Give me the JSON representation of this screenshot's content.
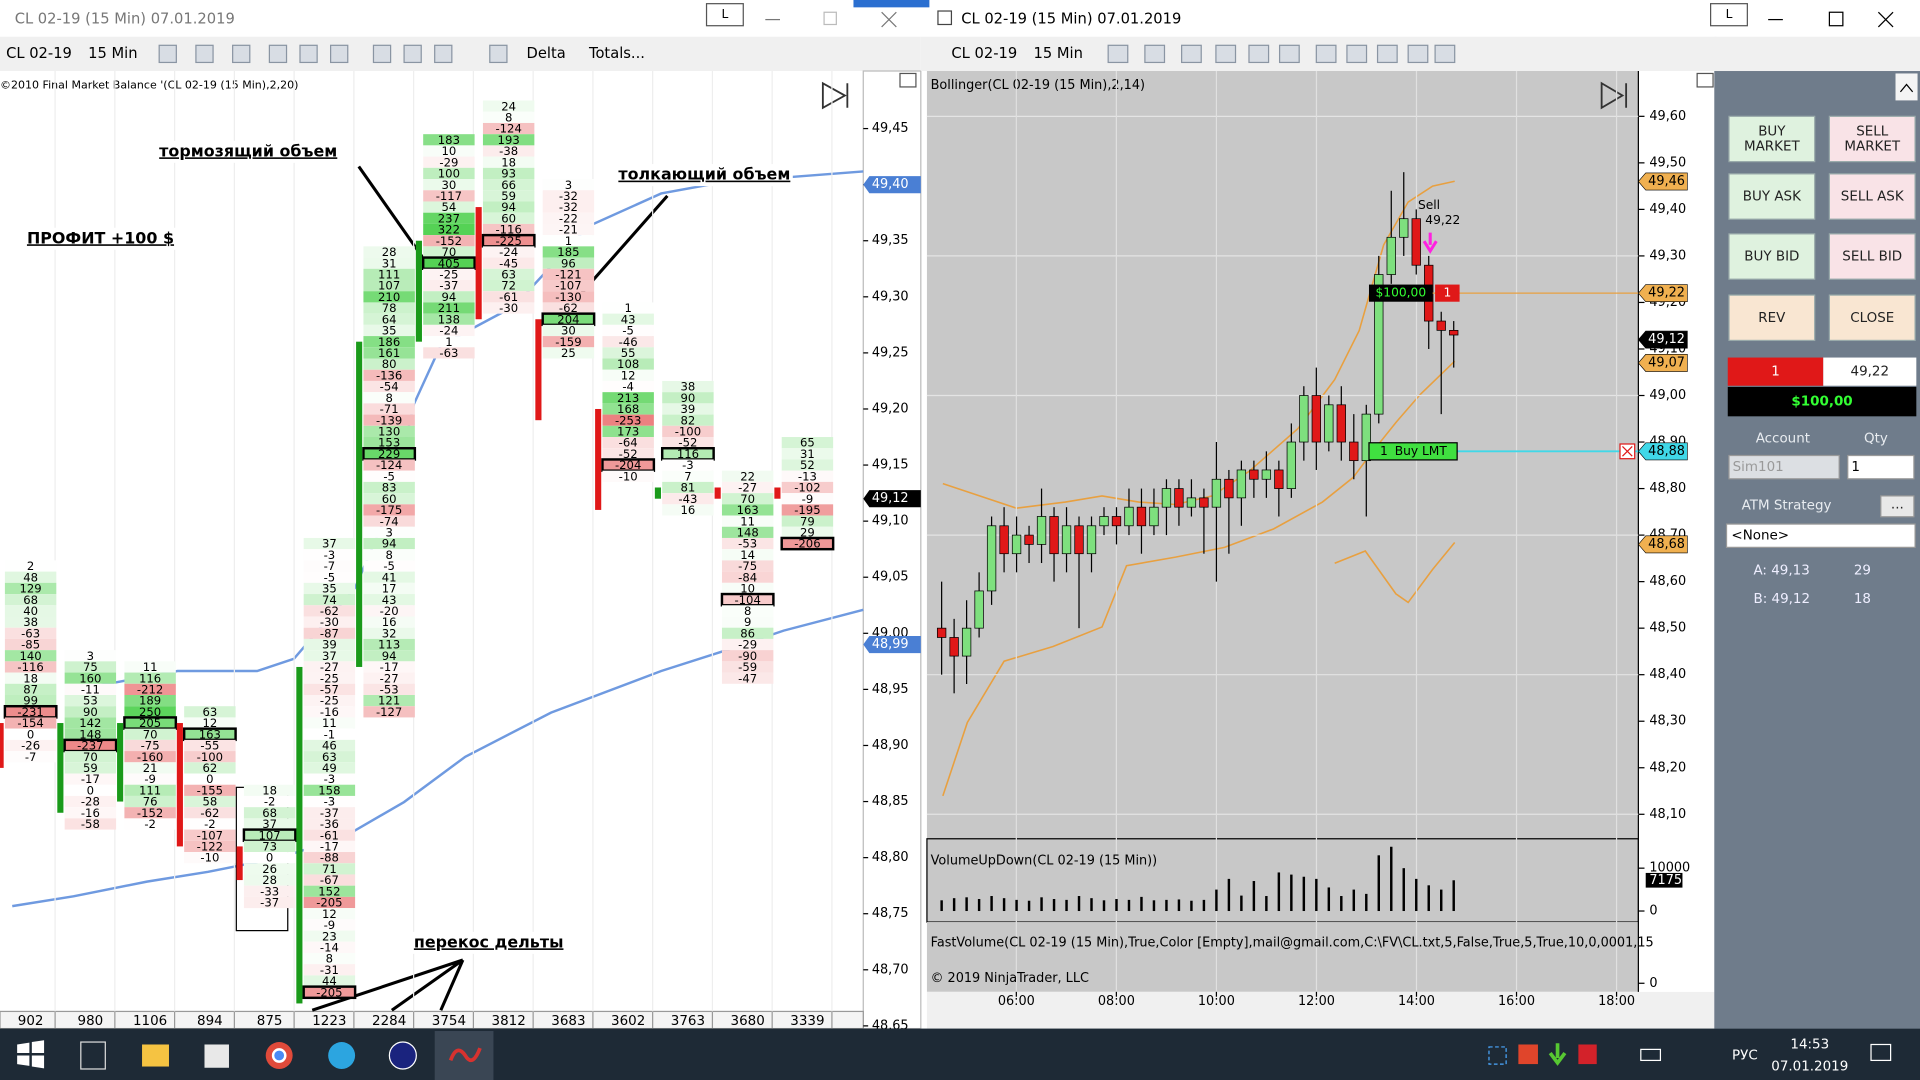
{
  "left_window": {
    "title": "CL 02-19 (15 Min)  07.01.2019",
    "toolbar": [
      "CL 02-19",
      "15 Min",
      "Delta",
      "Totals..."
    ],
    "indicator": "©2010 Final Market Balance  '(CL 02-19 (15 Min),2,20)",
    "price_ticks": [
      {
        "value": 49.45,
        "label": "49,45"
      },
      {
        "value": 49.4,
        "label": "49,40"
      },
      {
        "value": 49.35,
        "label": "49,35"
      },
      {
        "value": 49.3,
        "label": "49,30"
      },
      {
        "value": 49.25,
        "label": "49,25"
      },
      {
        "value": 49.2,
        "label": "49,20"
      },
      {
        "value": 49.15,
        "label": "49,15"
      },
      {
        "value": 49.1,
        "label": "49,10"
      },
      {
        "value": 49.05,
        "label": "49,05"
      },
      {
        "value": 49.0,
        "label": "49,00"
      },
      {
        "value": 48.95,
        "label": "48,95"
      },
      {
        "value": 48.9,
        "label": "48,90"
      },
      {
        "value": 48.85,
        "label": "48,85"
      },
      {
        "value": 48.8,
        "label": "48,80"
      },
      {
        "value": 48.75,
        "label": "48,75"
      },
      {
        "value": 48.7,
        "label": "48,70"
      },
      {
        "value": 48.65,
        "label": "48,65"
      }
    ],
    "price_markers": [
      {
        "value": 49.4,
        "label": "49,40",
        "color": "#4a7fd4"
      },
      {
        "value": 49.12,
        "label": "49,12",
        "color": "#000000"
      },
      {
        "value": 48.99,
        "label": "48,99",
        "color": "#4a7fd4"
      }
    ],
    "annotations": [
      "ПРОФИТ +100 $",
      "тормозящий объем",
      "толкающий объем",
      "перекос дельты"
    ],
    "columns": [
      {
        "total": 902,
        "top": 49.06,
        "body": [
          48.92,
          48.88
        ],
        "poc": 13,
        "cells": [
          2,
          48,
          129,
          68,
          40,
          38,
          -63,
          -85,
          140,
          -116,
          18,
          87,
          99,
          -231,
          -154,
          0,
          -26,
          -7
        ]
      },
      {
        "total": 980,
        "top": 48.98,
        "body": [
          48.84,
          48.92
        ],
        "poc": 8,
        "cells": [
          3,
          75,
          160,
          -11,
          53,
          90,
          142,
          148,
          -237,
          70,
          59,
          -17,
          0,
          -28,
          -16,
          -58
        ]
      },
      {
        "total": 1106,
        "top": 48.97,
        "body": [
          48.85,
          48.92
        ],
        "poc": 5,
        "cells": [
          11,
          116,
          -212,
          189,
          250,
          205,
          70,
          -75,
          -160,
          21,
          -9,
          111,
          76,
          -152,
          -2
        ]
      },
      {
        "total": 894,
        "top": 48.93,
        "body": [
          48.92,
          48.81
        ],
        "poc": 2,
        "cells": [
          63,
          12,
          163,
          -55,
          -100,
          62,
          0,
          -155,
          58,
          -62,
          -2,
          -107,
          -122,
          -10
        ]
      },
      {
        "total": 875,
        "top": 48.86,
        "body": [
          48.81,
          48.78
        ],
        "poc": 4,
        "cells": [
          18,
          -2,
          68,
          37,
          107,
          73,
          0,
          26,
          28,
          -33,
          -37
        ]
      },
      {
        "total": 1223,
        "top": 49.08,
        "body": [
          48.67,
          48.97
        ],
        "poc": 40,
        "cells": [
          37,
          -3,
          -7,
          -5,
          35,
          74,
          -62,
          -30,
          -87,
          39,
          37,
          -27,
          -25,
          -57,
          -25,
          -16,
          11,
          -1,
          46,
          63,
          49,
          -3,
          158,
          -3,
          -37,
          -36,
          -61,
          -17,
          -88,
          71,
          -67,
          152,
          -205,
          12,
          -9,
          23,
          -14,
          8,
          -31,
          44,
          -205
        ]
      },
      {
        "total": 2284,
        "top": 49.34,
        "body": [
          48.97,
          49.26
        ],
        "poc": 18,
        "cells": [
          28,
          31,
          111,
          107,
          210,
          78,
          64,
          35,
          186,
          161,
          80,
          -136,
          -54,
          8,
          -71,
          -139,
          130,
          153,
          229,
          -124,
          -5,
          83,
          60,
          -175,
          -74,
          3,
          94,
          8,
          -5,
          41,
          17,
          43,
          -20,
          16,
          32,
          113,
          94,
          -17,
          -27,
          -53,
          121,
          -127
        ]
      },
      {
        "total": 3754,
        "top": 49.44,
        "body": [
          49.26,
          49.35
        ],
        "poc": 11,
        "cells": [
          183,
          10,
          -29,
          100,
          30,
          -117,
          54,
          237,
          322,
          -152,
          70,
          405,
          -25,
          -37,
          94,
          211,
          138,
          -24,
          1,
          -63
        ]
      },
      {
        "total": 3812,
        "top": 49.47,
        "body": [
          49.38,
          49.28
        ],
        "poc": 12,
        "cells": [
          24,
          8,
          -124,
          193,
          -38,
          18,
          93,
          66,
          59,
          94,
          60,
          -116,
          -225,
          -24,
          -45,
          63,
          72,
          -61,
          -30
        ]
      },
      {
        "total": 3683,
        "top": 49.4,
        "body": [
          49.28,
          49.19
        ],
        "poc": 12,
        "cells": [
          3,
          -32,
          -32,
          -22,
          -21,
          1,
          185,
          96,
          -121,
          -107,
          -130,
          -62,
          204,
          30,
          -159,
          25
        ]
      },
      {
        "total": 3602,
        "top": 49.29,
        "body": [
          49.2,
          49.11
        ],
        "poc": 14,
        "cells": [
          1,
          43,
          -5,
          -46,
          55,
          108,
          12,
          -4,
          213,
          168,
          -253,
          173,
          -64,
          -52,
          -204,
          -10
        ]
      },
      {
        "total": 3763,
        "top": 49.22,
        "body": [
          49.12,
          49.13
        ],
        "poc": 6,
        "cells": [
          38,
          90,
          39,
          82,
          -100,
          -52,
          116,
          -3,
          7,
          81,
          -43,
          16
        ]
      },
      {
        "total": 3680,
        "top": 49.14,
        "body": [
          49.13,
          49.12
        ],
        "poc": 11,
        "cells": [
          22,
          -27,
          70,
          163,
          11,
          148,
          -53,
          14,
          -75,
          -84,
          10,
          -104,
          8,
          9,
          86,
          -29,
          -90,
          -59,
          -47
        ]
      },
      {
        "total": 3339,
        "top": 49.17,
        "body": [
          49.13,
          49.12
        ],
        "poc": 9,
        "cells": [
          65,
          31,
          52,
          -13,
          -102,
          -9,
          -195,
          79,
          29,
          -206
        ]
      }
    ]
  },
  "right_window": {
    "title": "CL 02-19 (15 Min)  07.01.2019",
    "toolbar": [
      "CL 02-19",
      "15 Min"
    ],
    "indicator": "Bollinger(CL 02-19 (15 Min),2,14)",
    "price_ticks": [
      {
        "value": 49.6,
        "label": "49,60"
      },
      {
        "value": 49.5,
        "label": "49,50"
      },
      {
        "value": 49.4,
        "label": "49,40"
      },
      {
        "value": 49.3,
        "label": "49,30"
      },
      {
        "value": 49.2,
        "label": "49,20"
      },
      {
        "value": 49.1,
        "label": "49,10"
      },
      {
        "value": 49.0,
        "label": "49,00"
      },
      {
        "value": 48.9,
        "label": "48,90"
      },
      {
        "value": 48.8,
        "label": "48,80"
      },
      {
        "value": 48.7,
        "label": "48,70"
      },
      {
        "value": 48.6,
        "label": "48,60"
      },
      {
        "value": 48.5,
        "label": "48,50"
      },
      {
        "value": 48.4,
        "label": "48,40"
      },
      {
        "value": 48.3,
        "label": "48,30"
      },
      {
        "value": 48.2,
        "label": "48,20"
      },
      {
        "value": 48.1,
        "label": "48,10"
      }
    ],
    "price_markers": [
      {
        "value": 49.46,
        "label": "49,46",
        "color": "#f0b050"
      },
      {
        "value": 49.22,
        "label": "49,22",
        "color": "#f0b050"
      },
      {
        "value": 49.12,
        "label": "49,12",
        "color": "#000000"
      },
      {
        "value": 49.07,
        "label": "49,07",
        "color": "#f0b050"
      },
      {
        "value": 48.88,
        "label": "48,88",
        "color": "#40d8e8"
      },
      {
        "value": 48.68,
        "label": "48,68",
        "color": "#f0b050"
      }
    ],
    "time_ticks": [
      "06:00",
      "08:00",
      "10:00",
      "12:00",
      "14:00",
      "16:00",
      "18:00"
    ],
    "candles": [
      [
        48.5,
        48.6,
        48.4,
        48.48
      ],
      [
        48.48,
        48.52,
        48.36,
        48.44
      ],
      [
        48.44,
        48.56,
        48.38,
        48.5
      ],
      [
        48.5,
        48.62,
        48.48,
        48.58
      ],
      [
        48.58,
        48.74,
        48.55,
        48.72
      ],
      [
        48.72,
        48.76,
        48.62,
        48.66
      ],
      [
        48.66,
        48.74,
        48.62,
        48.7
      ],
      [
        48.7,
        48.72,
        48.64,
        48.68
      ],
      [
        48.68,
        48.8,
        48.64,
        48.74
      ],
      [
        48.74,
        48.76,
        48.6,
        48.66
      ],
      [
        48.66,
        48.76,
        48.62,
        48.72
      ],
      [
        48.72,
        48.74,
        48.5,
        48.66
      ],
      [
        48.66,
        48.74,
        48.62,
        48.72
      ],
      [
        48.72,
        48.76,
        48.7,
        48.74
      ],
      [
        48.74,
        48.76,
        48.68,
        48.72
      ],
      [
        48.72,
        48.8,
        48.7,
        48.76
      ],
      [
        48.76,
        48.8,
        48.66,
        48.72
      ],
      [
        48.72,
        48.8,
        48.7,
        48.76
      ],
      [
        48.76,
        48.82,
        48.7,
        48.8
      ],
      [
        48.8,
        48.82,
        48.72,
        48.76
      ],
      [
        48.76,
        48.82,
        48.74,
        48.78
      ],
      [
        48.78,
        48.8,
        48.66,
        48.76
      ],
      [
        48.76,
        48.9,
        48.6,
        48.82
      ],
      [
        48.82,
        48.84,
        48.66,
        48.78
      ],
      [
        48.78,
        48.86,
        48.72,
        48.84
      ],
      [
        48.84,
        48.86,
        48.78,
        48.82
      ],
      [
        48.82,
        48.88,
        48.78,
        48.84
      ],
      [
        48.84,
        48.86,
        48.74,
        48.8
      ],
      [
        48.8,
        48.94,
        48.78,
        48.9
      ],
      [
        48.9,
        49.02,
        48.86,
        49.0
      ],
      [
        49.0,
        49.06,
        48.84,
        48.9
      ],
      [
        48.9,
        49.0,
        48.88,
        48.98
      ],
      [
        48.98,
        49.02,
        48.86,
        48.9
      ],
      [
        48.9,
        48.96,
        48.82,
        48.86
      ],
      [
        48.86,
        48.98,
        48.74,
        48.96
      ],
      [
        48.96,
        49.3,
        48.94,
        49.26
      ],
      [
        49.26,
        49.44,
        49.24,
        49.34
      ],
      [
        49.34,
        49.48,
        49.3,
        49.38
      ],
      [
        49.38,
        49.4,
        49.26,
        49.28
      ],
      [
        49.28,
        49.3,
        49.1,
        49.16
      ],
      [
        49.16,
        49.18,
        48.96,
        49.14
      ],
      [
        49.14,
        49.16,
        49.06,
        49.13
      ]
    ],
    "volume_label": "VolumeUpDown(CL 02-19 (15 Min))",
    "volumes": [
      2500,
      3000,
      3200,
      2800,
      3500,
      3000,
      2600,
      2400,
      3200,
      2800,
      2600,
      3500,
      3000,
      2500,
      2800,
      2600,
      3300,
      2500,
      2600,
      2700,
      2400,
      2600,
      5000,
      7500,
      3600,
      7000,
      3500,
      9000,
      8500,
      8000,
      7500,
      5500,
      3500,
      5000,
      4000,
      13000,
      15000,
      10000,
      7500,
      6000,
      5000,
      7175
    ],
    "volume_ticks": [
      {
        "value": 10000,
        "label": "10000"
      },
      {
        "value": 0,
        "label": "0"
      }
    ],
    "volume_marker": 7175,
    "fast_volume_label": "FastVolume(CL 02-19 (15 Min),True,Color [Empty],mail@gmail.com,C:\\FV\\CL.txt,5,False,True,5,True,10,0,0001,15",
    "fast_volume_ticks": [
      0
    ],
    "copyright": "© 2019 NinjaTrader, LLC",
    "sell_order": {
      "label": "Sell",
      "price": "49,22"
    },
    "position_order": {
      "pnl": "$100,00",
      "qty": "1"
    },
    "limit_order": {
      "qty": "1",
      "label": "Buy LMT"
    }
  },
  "order_panel": {
    "buttons": [
      [
        "BUY",
        "MARKET"
      ],
      [
        "SELL",
        "MARKET"
      ],
      [
        "BUY ASK"
      ],
      [
        "SELL ASK"
      ],
      [
        "BUY BID"
      ],
      [
        "SELL BID"
      ],
      [
        "REV"
      ],
      [
        "CLOSE"
      ]
    ],
    "position_qty": "1",
    "position_price": "49,22",
    "pnl": "$100,00",
    "account_label": "Account",
    "qty_label": "Qty",
    "account": "Sim101",
    "qty": "1",
    "atm_label": "ATM Strategy",
    "atm_button": "...",
    "atm": "<None>",
    "ask": "A: 49,13",
    "ask_size": "29",
    "bid": "B: 49,12",
    "bid_size": "18"
  },
  "taskbar": {
    "language": "РУС",
    "time": "14:53",
    "date": "07.01.2019"
  }
}
